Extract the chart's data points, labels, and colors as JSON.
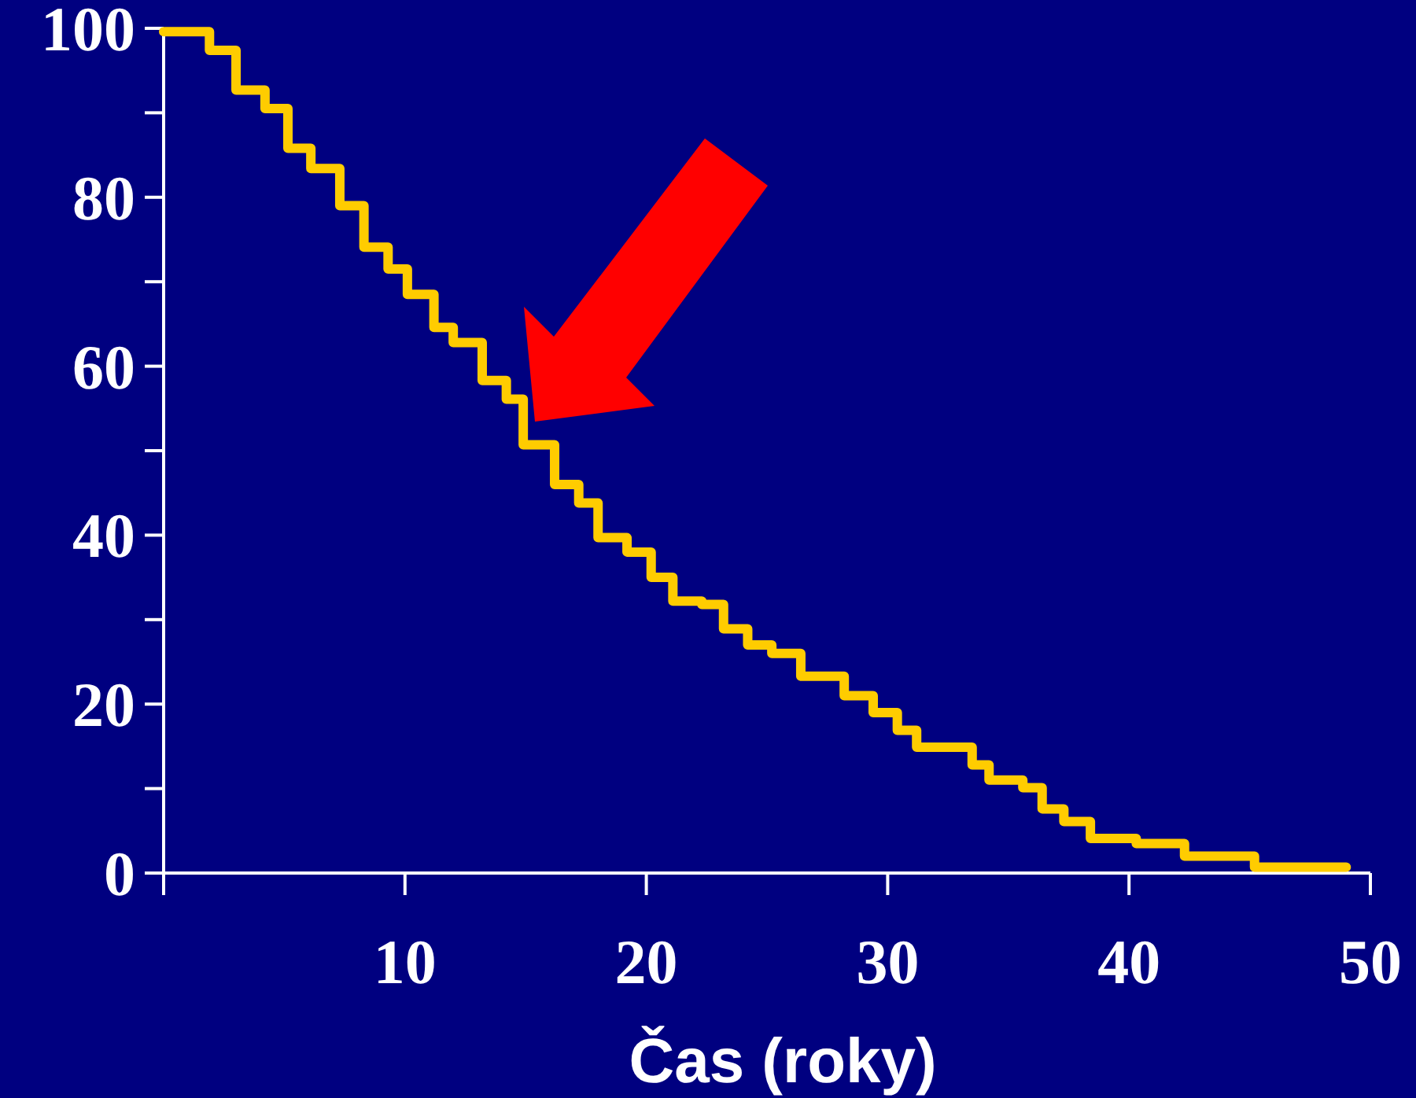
{
  "chart_data": {
    "type": "step",
    "xlabel": "Čas (roky)",
    "xlim": [
      0,
      50
    ],
    "ylim": [
      0,
      100
    ],
    "xticks": [
      {
        "value": 0,
        "label": null
      },
      10,
      20,
      30,
      40,
      50
    ],
    "yticks": [
      0,
      {
        "value": 10,
        "label": null
      },
      20,
      {
        "value": 30,
        "label": null
      },
      40,
      {
        "value": 50,
        "label": null
      },
      60,
      {
        "value": 70,
        "label": null
      },
      80,
      {
        "value": 90,
        "label": null
      },
      100
    ],
    "grid": false,
    "marker": "none",
    "line_style": "solid",
    "series": [
      {
        "color": "#ffcc00",
        "x": [
          0,
          1.9,
          3.0,
          4.2,
          5.15,
          6.1,
          7.3,
          8.3,
          9.3,
          10.1,
          11.2,
          12.0,
          13.2,
          14.2,
          14.9,
          16.2,
          17.2,
          18.0,
          19.2,
          20.2,
          21.1,
          22.3,
          23.2,
          24.2,
          25.2,
          26.4,
          28.2,
          29.4,
          30.4,
          31.2,
          33.5,
          34.2,
          35.6,
          36.4,
          37.3,
          38.4,
          40.3,
          42.3,
          45.2,
          49
        ],
        "values": [
          99.6,
          97.4,
          92.7,
          90.5,
          85.8,
          83.4,
          79,
          74.1,
          71.5,
          68.5,
          64.6,
          62.8,
          58.3,
          56.1,
          50.7,
          46,
          43.8,
          39.7,
          38,
          35,
          32.2,
          31.8,
          28.9,
          27,
          26,
          23.3,
          21,
          19,
          16.9,
          14.9,
          12.8,
          11,
          10.1,
          7.6,
          6.1,
          4.1,
          3.5,
          2,
          0.7,
          0.7
        ]
      }
    ]
  }
}
